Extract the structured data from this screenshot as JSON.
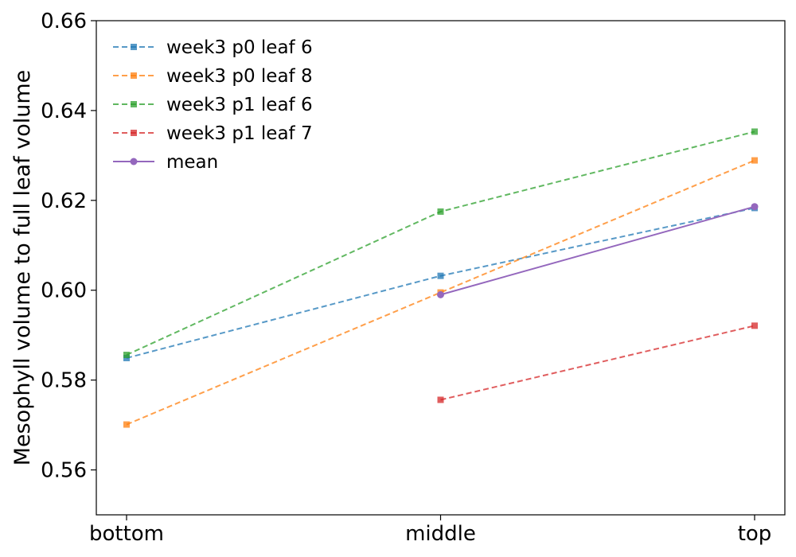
{
  "chart_data": {
    "type": "line",
    "title": "",
    "xlabel": "",
    "ylabel": "Mesophyll volume to full leaf volume",
    "categories": [
      "bottom",
      "middle",
      "top"
    ],
    "ylim": [
      0.55,
      0.66
    ],
    "yticks": [
      "0.56",
      "0.58",
      "0.60",
      "0.62",
      "0.64",
      "0.66"
    ],
    "grid": false,
    "legend_position": "top-left",
    "series": [
      {
        "name": "week3 p0 leaf 6",
        "color": "#1f77b4",
        "linestyle": "dashed",
        "marker": "square",
        "values": [
          0.5849,
          0.6032,
          0.6183
        ]
      },
      {
        "name": "week3 p0 leaf 8",
        "color": "#ff7f0e",
        "linestyle": "dashed",
        "marker": "square",
        "values": [
          0.5701,
          0.5995,
          0.6289
        ]
      },
      {
        "name": "week3 p1 leaf 6",
        "color": "#2ca02c",
        "linestyle": "dashed",
        "marker": "square",
        "values": [
          0.5856,
          0.6175,
          0.6353
        ]
      },
      {
        "name": "week3 p1 leaf 7",
        "color": "#d62728",
        "linestyle": "dashed",
        "marker": "square",
        "values": [
          null,
          0.5756,
          0.5921
        ]
      },
      {
        "name": "mean",
        "color": "#9467bd",
        "linestyle": "solid",
        "marker": "circle",
        "values": [
          null,
          0.599,
          0.6186
        ]
      }
    ]
  }
}
